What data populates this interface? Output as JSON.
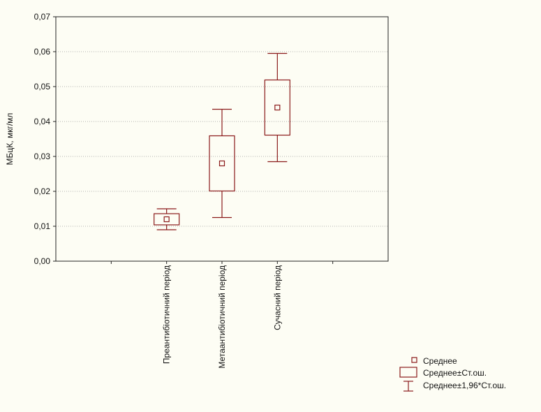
{
  "chart_data": {
    "type": "box",
    "title": "",
    "xlabel": "",
    "ylabel": "МБцК, мкг/мл",
    "ylim": [
      0,
      0.07
    ],
    "yticks": [
      "0,00",
      "0,01",
      "0,02",
      "0,03",
      "0,04",
      "0,05",
      "0,06",
      "0,07"
    ],
    "grid": true,
    "legend_position": "bottom-right",
    "color": "#8b1a1a",
    "categories": [
      "Преантибіотичний період",
      "Метаантибіотичний період",
      "Сучасний період"
    ],
    "series": [
      {
        "category": "Преантибіотичний період",
        "mean": 0.012,
        "se_low": 0.0104,
        "se_high": 0.0136,
        "ci_low": 0.009,
        "ci_high": 0.015
      },
      {
        "category": "Метаантибіотичний період",
        "mean": 0.028,
        "se_low": 0.0201,
        "se_high": 0.0359,
        "ci_low": 0.0125,
        "ci_high": 0.0435
      },
      {
        "category": "Сучасний період",
        "mean": 0.044,
        "se_low": 0.0361,
        "se_high": 0.0519,
        "ci_low": 0.0285,
        "ci_high": 0.0595
      }
    ],
    "legend": {
      "mean": "Среднее",
      "se": "Среднее±Ст.ош.",
      "ci": "Среднее±1,96*Ст.ош."
    }
  }
}
